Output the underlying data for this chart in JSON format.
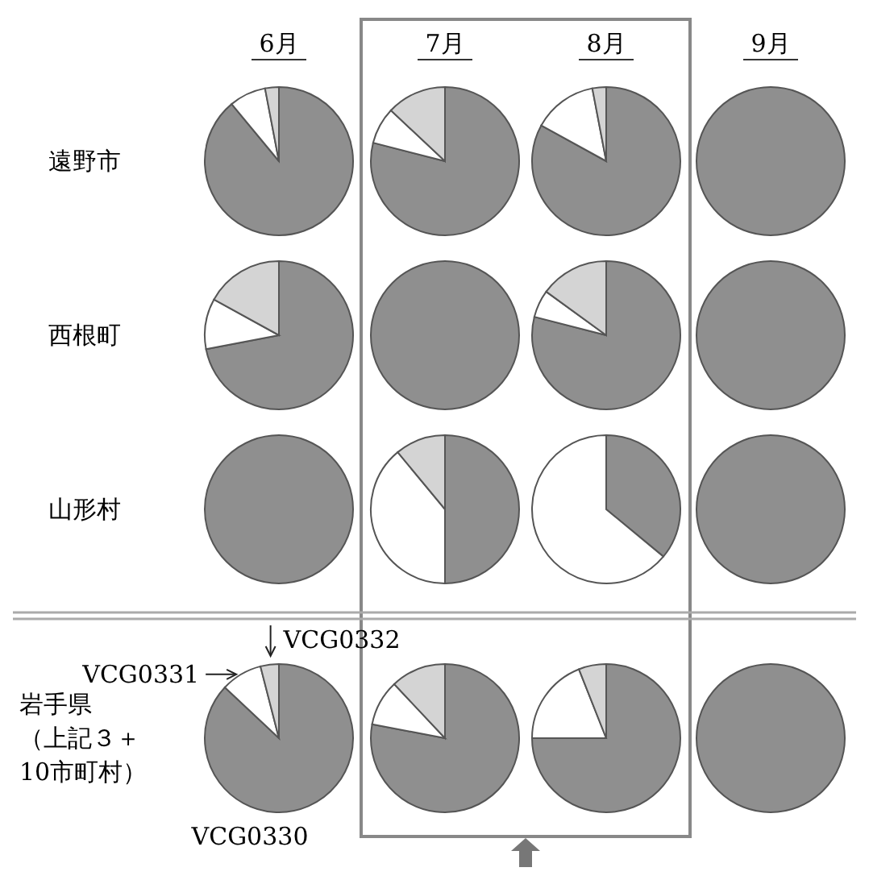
{
  "chart_data": [
    {
      "type": "pie",
      "title": "6月",
      "ylabel": "遠野市",
      "categories": [
        null,
        null,
        null
      ],
      "values": [
        89,
        8,
        3
      ],
      "colors": [
        "#8f8f8f",
        "#ffffff",
        "#d4d4d4"
      ]
    },
    {
      "type": "pie",
      "title": "7月",
      "categories": [
        null,
        null,
        null
      ],
      "values": [
        79,
        8,
        13
      ],
      "colors": [
        "#8f8f8f",
        "#ffffff",
        "#d4d4d4"
      ]
    },
    {
      "type": "pie",
      "title": "8月",
      "categories": [
        null,
        null,
        null
      ],
      "values": [
        83,
        14,
        3
      ],
      "colors": [
        "#8f8f8f",
        "#ffffff",
        "#d4d4d4"
      ]
    },
    {
      "type": "pie",
      "title": "9月",
      "categories": [
        null,
        null,
        null
      ],
      "values": [
        100,
        0,
        0
      ],
      "colors": [
        "#8f8f8f",
        "#ffffff",
        "#d4d4d4"
      ]
    },
    {
      "type": "pie",
      "ylabel": "西根町",
      "categories": [
        null,
        null,
        null
      ],
      "values": [
        72,
        11,
        17
      ],
      "colors": [
        "#8f8f8f",
        "#ffffff",
        "#d4d4d4"
      ]
    },
    {
      "type": "pie",
      "categories": [
        null,
        null,
        null
      ],
      "values": [
        100,
        0,
        0
      ],
      "colors": [
        "#8f8f8f",
        "#ffffff",
        "#d4d4d4"
      ]
    },
    {
      "type": "pie",
      "categories": [
        null,
        null,
        null
      ],
      "values": [
        79,
        6,
        15
      ],
      "colors": [
        "#8f8f8f",
        "#ffffff",
        "#d4d4d4"
      ]
    },
    {
      "type": "pie",
      "categories": [
        null,
        null,
        null
      ],
      "values": [
        100,
        0,
        0
      ],
      "colors": [
        "#8f8f8f",
        "#ffffff",
        "#d4d4d4"
      ]
    },
    {
      "type": "pie",
      "ylabel": "山形村",
      "categories": [
        null,
        null,
        null
      ],
      "values": [
        100,
        0,
        0
      ],
      "colors": [
        "#8f8f8f",
        "#ffffff",
        "#d4d4d4"
      ]
    },
    {
      "type": "pie",
      "categories": [
        null,
        null,
        null
      ],
      "values": [
        50,
        39,
        11
      ],
      "colors": [
        "#8f8f8f",
        "#ffffff",
        "#d4d4d4"
      ]
    },
    {
      "type": "pie",
      "categories": [
        null,
        null,
        null
      ],
      "values": [
        36,
        64,
        0
      ],
      "colors": [
        "#8f8f8f",
        "#ffffff",
        "#d4d4d4"
      ]
    },
    {
      "type": "pie",
      "categories": [
        null,
        null,
        null
      ],
      "values": [
        100,
        0,
        0
      ],
      "colors": [
        "#8f8f8f",
        "#ffffff",
        "#d4d4d4"
      ]
    },
    {
      "type": "pie",
      "ylabel": "岩手県（上記３＋10市町村）",
      "categories": [
        "VCG0330",
        "VCG0331",
        "VCG0332"
      ],
      "values": [
        87,
        9,
        4
      ],
      "colors": [
        "#8f8f8f",
        "#ffffff",
        "#d4d4d4"
      ]
    },
    {
      "type": "pie",
      "categories": [
        null,
        null,
        null
      ],
      "values": [
        78,
        10,
        12
      ],
      "colors": [
        "#8f8f8f",
        "#ffffff",
        "#d4d4d4"
      ]
    },
    {
      "type": "pie",
      "categories": [
        null,
        null,
        null
      ],
      "values": [
        75,
        19,
        6
      ],
      "colors": [
        "#8f8f8f",
        "#ffffff",
        "#d4d4d4"
      ]
    },
    {
      "type": "pie",
      "categories": [
        null,
        null,
        null
      ],
      "values": [
        100,
        0,
        0
      ],
      "colors": [
        "#8f8f8f",
        "#ffffff",
        "#d4d4d4"
      ]
    }
  ]
}
